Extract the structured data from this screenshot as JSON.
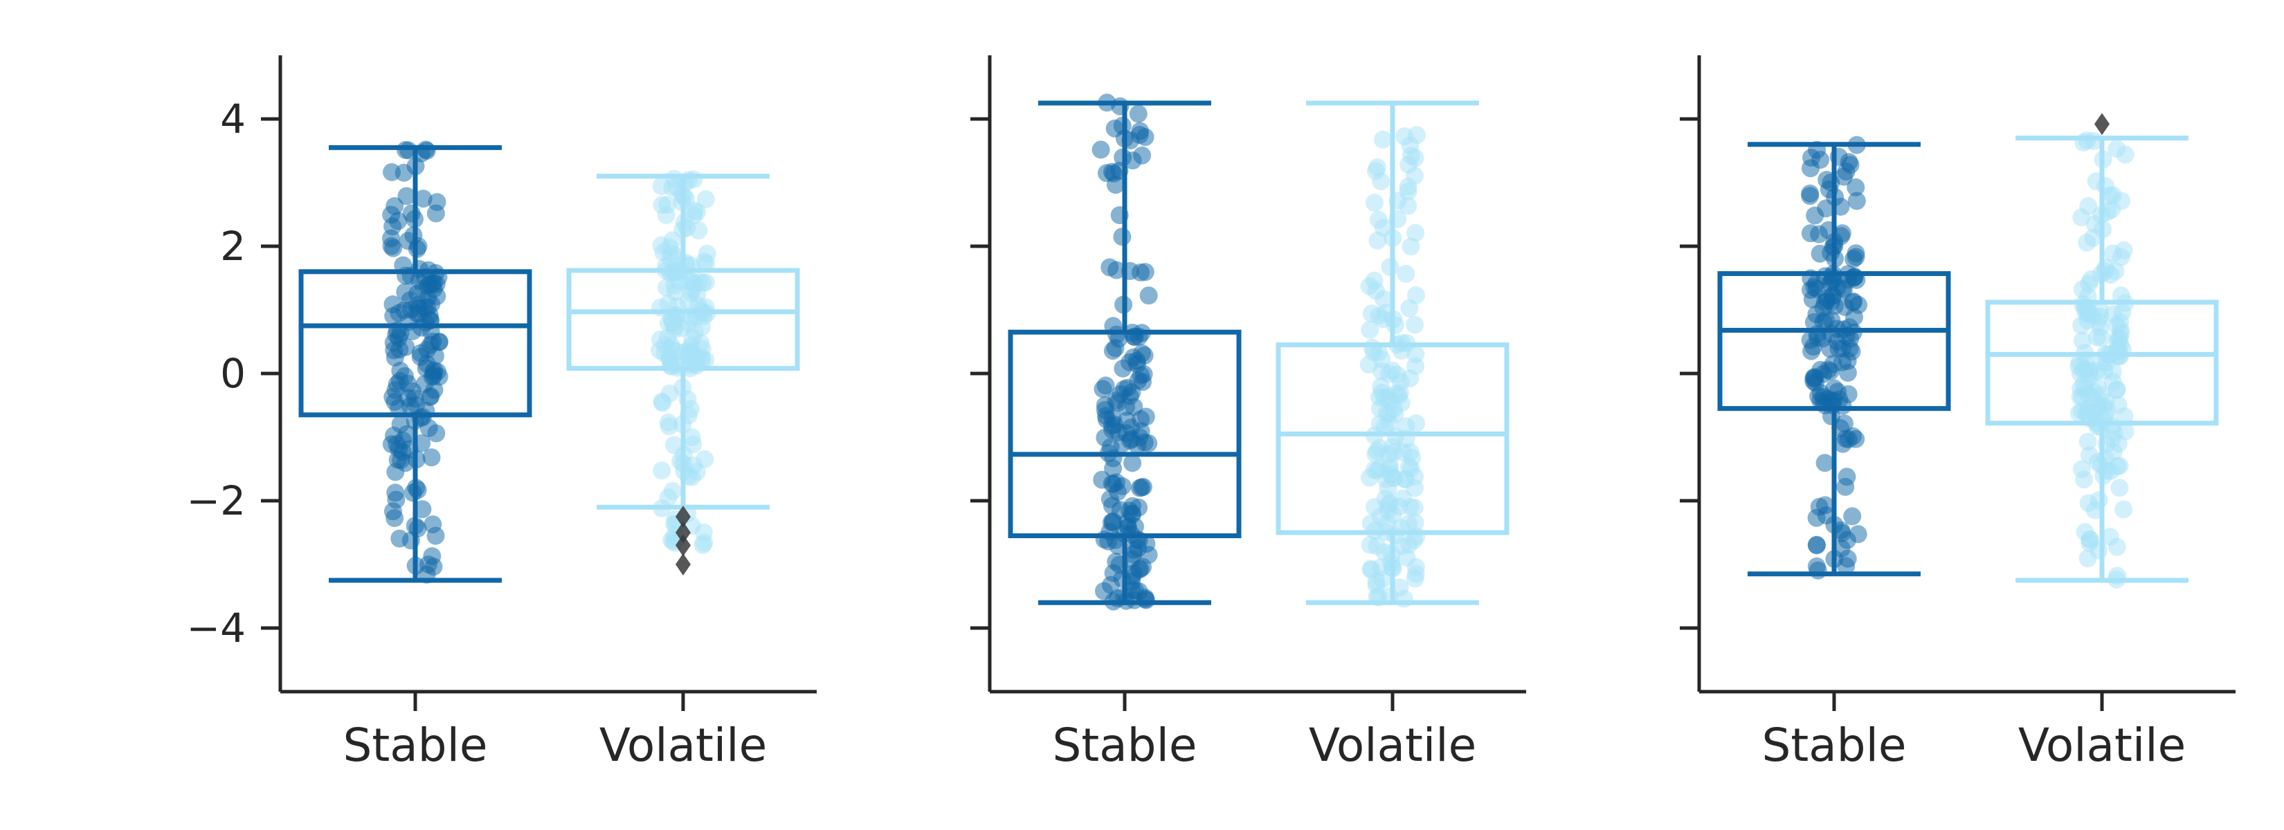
{
  "colors": {
    "stable": "#1067a8",
    "volatile": "#a6e1f8",
    "outlier": "#3a3a3a",
    "axis": "#262626"
  },
  "chart_data": [
    {
      "type": "box",
      "categories": [
        "Stable",
        "Volatile"
      ],
      "ylim": [
        -5,
        5
      ],
      "yticks": [
        4,
        2,
        0,
        -2,
        -4
      ],
      "ytick_labels": [
        "4",
        "2",
        "0",
        "−2",
        "−4"
      ],
      "show_yticklabels": true,
      "boxes": [
        {
          "name": "Stable",
          "whisker_low": -3.25,
          "q1": -0.65,
          "median": 0.75,
          "q3": 1.6,
          "whisker_high": 3.55,
          "outliers": []
        },
        {
          "name": "Volatile",
          "whisker_low": -2.1,
          "q1": 0.08,
          "median": 0.97,
          "q3": 1.62,
          "whisker_high": 3.1,
          "outliers": [
            -2.25,
            -2.5,
            -2.7,
            -3.0
          ]
        }
      ],
      "strip_ranges": [
        [
          -3.25,
          3.55
        ],
        [
          -2.7,
          3.1
        ]
      ]
    },
    {
      "type": "box",
      "categories": [
        "Stable",
        "Volatile"
      ],
      "ylim": [
        -5,
        5
      ],
      "yticks": [
        4,
        2,
        0,
        -2,
        -4
      ],
      "ytick_labels": [
        "4",
        "2",
        "0",
        "−2",
        "−4"
      ],
      "show_yticklabels": false,
      "boxes": [
        {
          "name": "Stable",
          "whisker_low": -3.6,
          "q1": -2.55,
          "median": -1.27,
          "q3": 0.65,
          "whisker_high": 4.25,
          "outliers": []
        },
        {
          "name": "Volatile",
          "whisker_low": -3.6,
          "q1": -2.5,
          "median": -0.95,
          "q3": 0.45,
          "whisker_high": 4.25,
          "outliers": []
        }
      ],
      "strip_ranges": [
        [
          -3.6,
          4.3
        ],
        [
          -3.6,
          4.25
        ]
      ]
    },
    {
      "type": "box",
      "categories": [
        "Stable",
        "Volatile"
      ],
      "ylim": [
        -5,
        5
      ],
      "yticks": [
        4,
        2,
        0,
        -2,
        -4
      ],
      "ytick_labels": [
        "4",
        "2",
        "0",
        "−2",
        "−4"
      ],
      "show_yticklabels": false,
      "boxes": [
        {
          "name": "Stable",
          "whisker_low": -3.15,
          "q1": -0.55,
          "median": 0.68,
          "q3": 1.57,
          "whisker_high": 3.6,
          "outliers": []
        },
        {
          "name": "Volatile",
          "whisker_low": -3.25,
          "q1": -0.78,
          "median": 0.3,
          "q3": 1.12,
          "whisker_high": 3.7,
          "outliers": [
            3.92
          ]
        }
      ],
      "strip_ranges": [
        [
          -3.15,
          3.6
        ],
        [
          -3.25,
          3.7
        ]
      ]
    }
  ]
}
